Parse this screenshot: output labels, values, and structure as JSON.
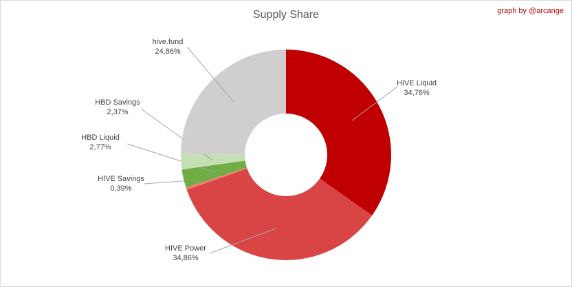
{
  "chart_data": {
    "type": "donut",
    "title": "Supply Share",
    "annotation": "graph by @arcange",
    "categories": [
      "HIVE Liquid",
      "HIVE Power",
      "HIVE Savings",
      "HBD Liquid",
      "HBD Savings",
      "hive.fund"
    ],
    "values": [
      34.76,
      34.86,
      0.39,
      2.77,
      2.37,
      24.86
    ],
    "value_labels": [
      "34,76%",
      "34,86%",
      "0,39%",
      "2,77%",
      "2,37%",
      "24,86%"
    ],
    "colors": [
      "#c00000",
      "#d94444",
      "#ee7b6e",
      "#70ad47",
      "#c5e0b4",
      "#d0cece"
    ]
  }
}
